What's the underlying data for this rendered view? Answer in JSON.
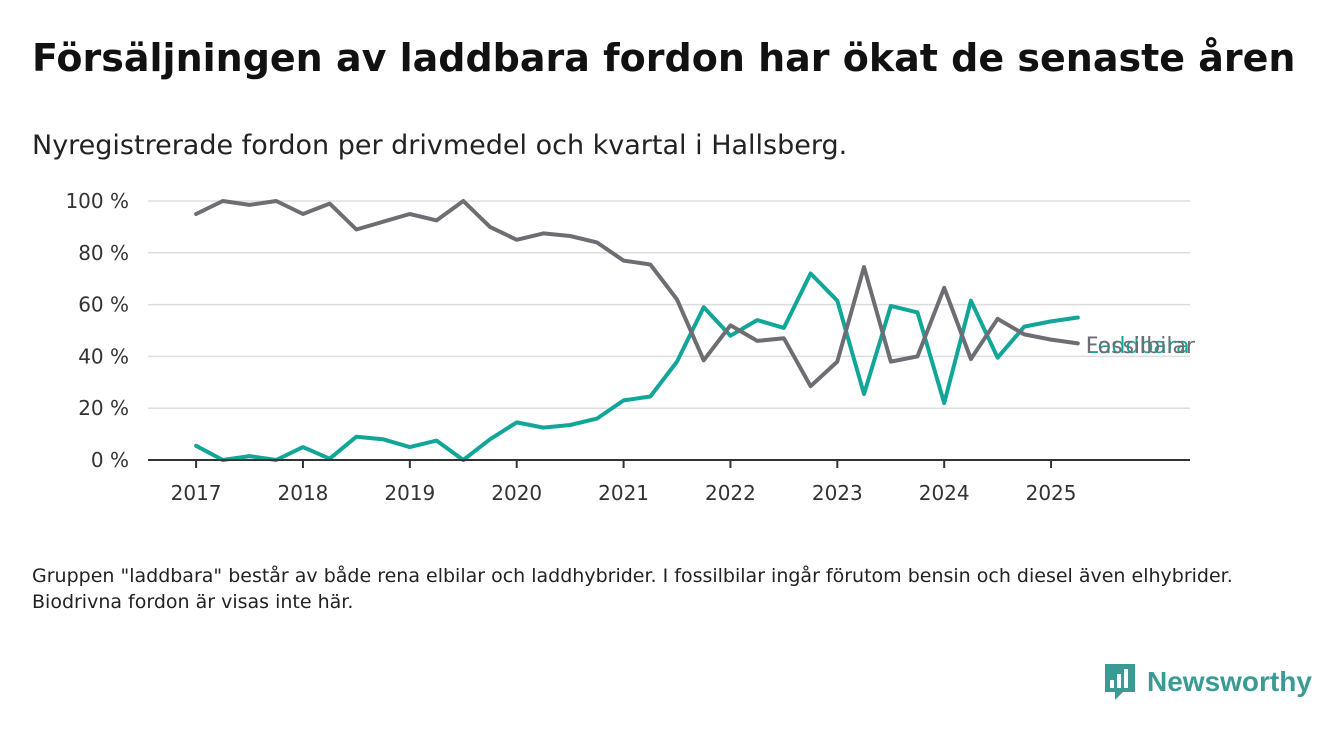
{
  "header": {
    "title": "Försäljningen av laddbara fordon har ökat de senaste åren",
    "subtitle": "Nyregistrerade fordon per drivmedel och kvartal i Hallsberg."
  },
  "footnote": "Gruppen \"laddbara\" består av både rena elbilar och laddhybrider. I fossilbilar ingår förutom bensin och diesel även elhybrider. Biodrivna fordon är visas inte här.",
  "brand": {
    "name": "Newsworthy",
    "icon": "newsworthy-logo-icon",
    "color": "#3a9b94"
  },
  "chart_data": {
    "type": "line",
    "x_ticks": [
      2017,
      2018,
      2019,
      2020,
      2021,
      2022,
      2023,
      2024,
      2025
    ],
    "y_ticks": [
      0,
      20,
      40,
      60,
      80,
      100
    ],
    "y_tick_labels": [
      "0 %",
      "20 %",
      "40 %",
      "60 %",
      "80 %",
      "100 %"
    ],
    "xlim": [
      2016.55,
      2026.3
    ],
    "ylim": [
      0,
      100
    ],
    "grid": true,
    "x": [
      2017.0,
      2017.25,
      2017.5,
      2017.75,
      2018.0,
      2018.25,
      2018.5,
      2018.75,
      2019.0,
      2019.25,
      2019.5,
      2019.75,
      2020.0,
      2020.25,
      2020.5,
      2020.75,
      2021.0,
      2021.25,
      2021.5,
      2021.75,
      2022.0,
      2022.25,
      2022.5,
      2022.75,
      2023.0,
      2023.25,
      2023.5,
      2023.75,
      2024.0,
      2024.25,
      2024.5,
      2024.75,
      2025.0,
      2025.25
    ],
    "series": [
      {
        "name": "Fossilbilar",
        "color": "#6e6d74",
        "values": [
          95,
          100,
          98.5,
          100,
          95,
          99,
          89,
          92,
          95,
          92.5,
          100,
          90,
          85,
          87.5,
          86.5,
          84,
          77,
          75.5,
          62,
          38.5,
          52,
          46,
          47,
          28.5,
          38,
          74.5,
          38,
          40,
          66.5,
          39,
          54.5,
          48.5,
          46.5,
          45
        ]
      },
      {
        "name": "Laddbara",
        "color": "#12a699",
        "values": [
          5.5,
          0,
          1.5,
          0,
          5,
          0.5,
          9,
          8,
          5,
          7.5,
          0,
          8,
          14.5,
          12.5,
          13.5,
          16,
          23,
          24.5,
          38,
          59,
          48,
          54,
          51,
          72,
          61.5,
          25.5,
          59.5,
          57,
          22,
          61.5,
          39.5,
          51.5,
          53.5,
          55
        ]
      }
    ]
  }
}
